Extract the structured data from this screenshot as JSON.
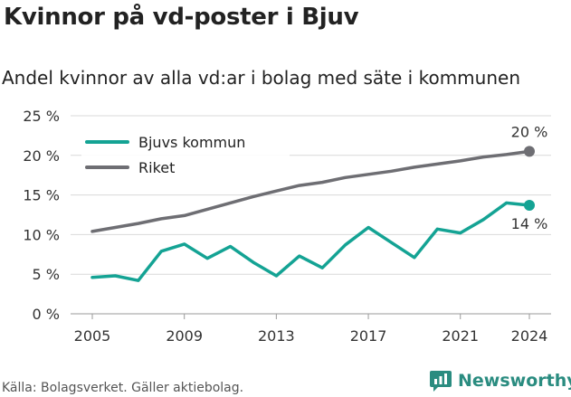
{
  "header": {
    "title": "Kvinnor på vd-poster i Bjuv",
    "subtitle": "Andel kvinnor av alla vd:ar i bolag med säte i kommunen"
  },
  "footer": {
    "source": "Källa: Bolagsverket. Gäller aktiebolag.",
    "brand": "Newsworthy"
  },
  "colors": {
    "bjuv": "#14a394",
    "riket": "#6e6e73",
    "grid": "#d9d9d9",
    "brand": "#2a8c80"
  },
  "chart_data": {
    "type": "line",
    "x": [
      2005,
      2006,
      2007,
      2008,
      2009,
      2010,
      2011,
      2012,
      2013,
      2014,
      2015,
      2016,
      2017,
      2018,
      2019,
      2020,
      2021,
      2022,
      2023,
      2024
    ],
    "x_ticks": [
      "2005",
      "2009",
      "2013",
      "2017",
      "2021",
      "2024"
    ],
    "y_ticks": [
      "0 %",
      "5 %",
      "10 %",
      "15 %",
      "20 %",
      "25 %"
    ],
    "ylim": [
      0,
      25
    ],
    "grid": true,
    "legend_position": "top-left",
    "series": [
      {
        "name": "Bjuvs kommun",
        "key": "bjuv",
        "values": [
          4.6,
          4.8,
          4.2,
          7.9,
          8.8,
          7.0,
          8.5,
          6.5,
          4.8,
          7.3,
          5.8,
          8.7,
          10.9,
          9.0,
          7.1,
          10.7,
          10.2,
          11.9,
          14.0,
          13.7
        ],
        "end_label": "14 %"
      },
      {
        "name": "Riket",
        "key": "riket",
        "values": [
          10.4,
          10.9,
          11.4,
          12.0,
          12.4,
          13.2,
          14.0,
          14.8,
          15.5,
          16.2,
          16.6,
          17.2,
          17.6,
          18.0,
          18.5,
          18.9,
          19.3,
          19.8,
          20.1,
          20.5
        ],
        "end_label": "20 %"
      }
    ]
  }
}
